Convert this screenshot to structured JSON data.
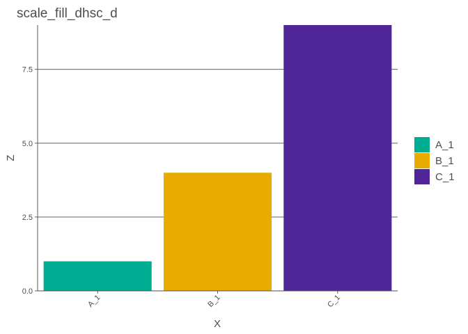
{
  "chart_data": {
    "type": "bar",
    "title": "scale_fill_dhsc_d",
    "xlabel": "X",
    "ylabel": "Z",
    "categories": [
      "A_1",
      "B_1",
      "C_1"
    ],
    "values": [
      1,
      4,
      9
    ],
    "colors": [
      "#00AD93",
      "#EAAB00",
      "#512698"
    ],
    "ylim": [
      0,
      9
    ],
    "yticks": [
      0,
      2.5,
      5,
      7.5
    ],
    "ytick_labels": [
      "0.0",
      "2.5",
      "5.0",
      "7.5"
    ],
    "grid": "horizontal-major",
    "legend": {
      "position": "right",
      "entries": [
        "A_1",
        "B_1",
        "C_1"
      ]
    }
  }
}
